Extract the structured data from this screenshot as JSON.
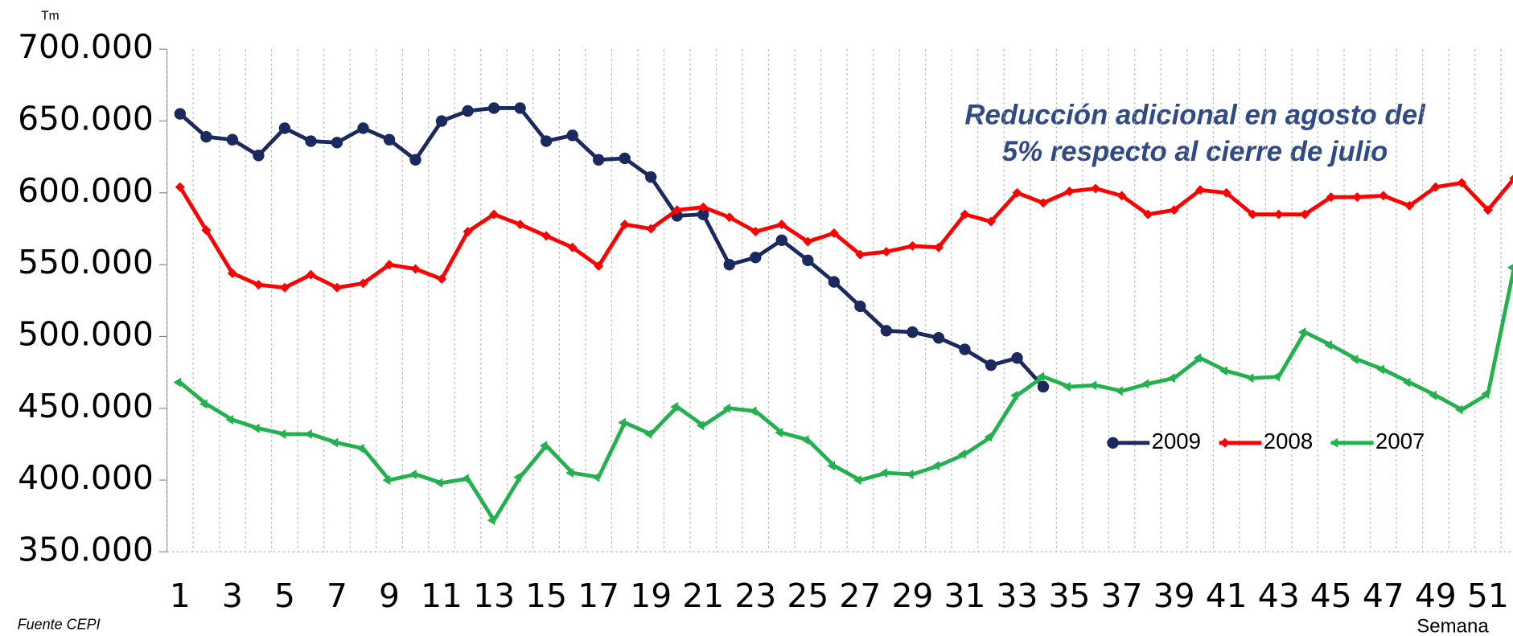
{
  "chart_data": {
    "type": "line",
    "ylabel": "Tm",
    "xlabel": "Semana",
    "source": "Fuente CEPI",
    "annotation": [
      "Reducción adicional en agosto del",
      "5% respecto al cierre de julio"
    ],
    "x": [
      1,
      2,
      3,
      4,
      5,
      6,
      7,
      8,
      9,
      10,
      11,
      12,
      13,
      14,
      15,
      16,
      17,
      18,
      19,
      20,
      21,
      22,
      23,
      24,
      25,
      26,
      27,
      28,
      29,
      30,
      31,
      32,
      33,
      34,
      35,
      36,
      37,
      38,
      39,
      40,
      41,
      42,
      43,
      44,
      45,
      46,
      47,
      48,
      49,
      50,
      51,
      52
    ],
    "xlim": [
      0.5,
      52.5
    ],
    "xticks": [
      1,
      3,
      5,
      7,
      9,
      11,
      13,
      15,
      17,
      19,
      21,
      23,
      25,
      27,
      29,
      31,
      33,
      35,
      37,
      39,
      41,
      43,
      45,
      47,
      49,
      51
    ],
    "ylim": [
      350000,
      700000
    ],
    "yticks": [
      {
        "value": 350000,
        "label": "350.000"
      },
      {
        "value": 400000,
        "label": "400.000"
      },
      {
        "value": 450000,
        "label": "450.000"
      },
      {
        "value": 500000,
        "label": "500.000"
      },
      {
        "value": 550000,
        "label": "550.000"
      },
      {
        "value": 600000,
        "label": "600.000"
      },
      {
        "value": 650000,
        "label": "650.000"
      },
      {
        "value": 700000,
        "label": "700.000"
      }
    ],
    "grid": true,
    "series": [
      {
        "name": "2009",
        "color": "#1b2a5e",
        "marker": "circle",
        "values": [
          655000,
          639000,
          637000,
          626000,
          645000,
          636000,
          635000,
          645000,
          637000,
          623000,
          650000,
          657000,
          659000,
          659000,
          636000,
          640000,
          623000,
          624000,
          611000,
          584000,
          585000,
          550000,
          555000,
          567000,
          553000,
          538000,
          521000,
          504000,
          503000,
          499000,
          491000,
          480000,
          485000,
          465000,
          null,
          null,
          null,
          null,
          null,
          null,
          null,
          null,
          null,
          null,
          null,
          null,
          null,
          null,
          null,
          null,
          null,
          null
        ]
      },
      {
        "name": "2008",
        "color": "#ff0000",
        "marker": "diamond",
        "values": [
          604000,
          574000,
          544000,
          536000,
          534000,
          543000,
          534000,
          537000,
          550000,
          547000,
          540000,
          573000,
          585000,
          578000,
          570000,
          562000,
          549000,
          578000,
          575000,
          588000,
          590000,
          583000,
          573000,
          578000,
          566000,
          572000,
          557000,
          559000,
          563000,
          562000,
          585000,
          580000,
          600000,
          593000,
          601000,
          603000,
          598000,
          585000,
          588000,
          602000,
          600000,
          585000,
          585000,
          585000,
          597000,
          597000,
          598000,
          591000,
          604000,
          607000,
          588000,
          610000
        ]
      },
      {
        "name": "2007",
        "color": "#22b14c",
        "marker": "triangle",
        "values": [
          468000,
          453000,
          442000,
          436000,
          432000,
          432000,
          426000,
          422000,
          400000,
          404000,
          398000,
          401000,
          372000,
          402000,
          424000,
          405000,
          402000,
          440000,
          432000,
          451000,
          438000,
          450000,
          448000,
          433000,
          428000,
          410000,
          400000,
          405000,
          404000,
          410000,
          418000,
          430000,
          459000,
          472000,
          465000,
          466000,
          462000,
          467000,
          471000,
          485000,
          476000,
          471000,
          472000,
          503000,
          494000,
          484000,
          477000,
          468000,
          459000,
          449000,
          460000,
          548000
        ]
      }
    ]
  }
}
